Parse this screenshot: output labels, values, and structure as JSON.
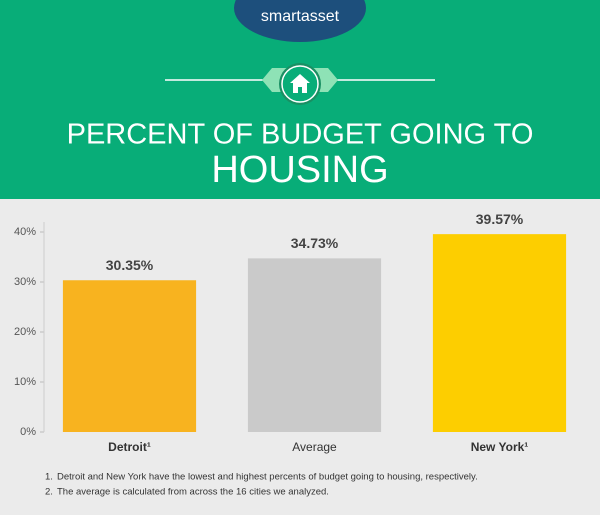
{
  "header": {
    "logo": "smartasset"
  },
  "chart_data": {
    "type": "bar",
    "title": "PERCENT OF BUDGET GOING TO",
    "subtitle": "HOUSING",
    "categories": [
      "Detroit¹",
      "Average",
      "New York¹"
    ],
    "values": [
      30.35,
      34.73,
      39.57
    ],
    "value_labels": [
      "30.35%",
      "34.73%",
      "39.57%"
    ],
    "colors": [
      "#f8b31f",
      "#cacaca",
      "#fdce00"
    ],
    "ylim": [
      0,
      40
    ],
    "yticks": [
      {
        "value": 0,
        "label": "0%"
      },
      {
        "value": 10,
        "label": "10%"
      },
      {
        "value": 20,
        "label": "20%"
      },
      {
        "value": 30,
        "label": "30%"
      },
      {
        "value": 40,
        "label": "40%"
      }
    ],
    "grid": false
  },
  "notes": [
    {
      "marker": "1.",
      "text": "Detroit and New York have the lowest and highest percents of budget going to housing, respectively."
    },
    {
      "marker": "2.",
      "text": "The average is calculated from across the 16 cities we analyzed."
    }
  ]
}
